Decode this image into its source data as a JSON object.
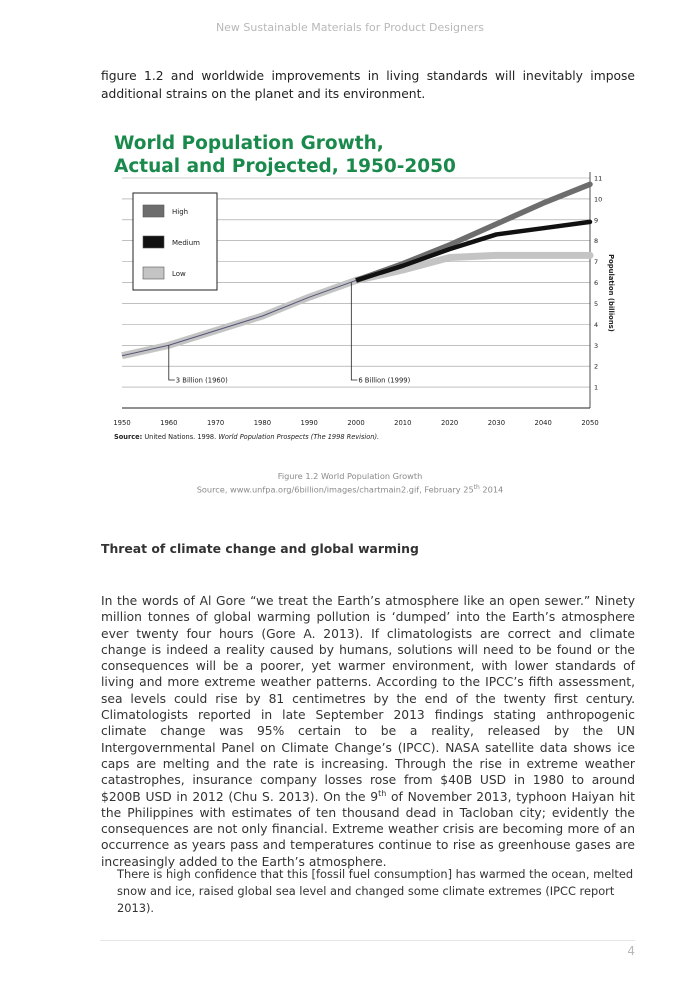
{
  "header": {
    "running_head": "New Sustainable Materials for Product Designers"
  },
  "intro_text": "figure 1.2 and worldwide improvements in living standards will inevitably impose additional strains on the planet and its environment.",
  "figure": {
    "title_line1": "World Population Growth,",
    "title_line2": "Actual and Projected, 1950-2050",
    "source_label": "Source:",
    "source_text": " United Nations. 1998. ",
    "source_italic": "World Population Prospects (The 1998 Revision).",
    "caption_line1": "Figure 1.2 World Population Growth",
    "caption_line2": "Source, www.unfpa.org/6billion/images/chartmain2.gif, February 25",
    "caption_sup": "th",
    "caption_year": " 2014"
  },
  "chart_data": {
    "type": "line",
    "title": "World Population Growth, Actual and Projected, 1950-2050",
    "xlabel": "",
    "ylabel": "Population (billions)",
    "xlim": [
      1950,
      2050
    ],
    "ylim": [
      0,
      11
    ],
    "x_ticks": [
      1950,
      1960,
      1970,
      1980,
      1990,
      2000,
      2010,
      2020,
      2030,
      2040,
      2050
    ],
    "y_ticks": [
      1,
      2,
      3,
      4,
      5,
      6,
      7,
      8,
      9,
      10,
      11
    ],
    "y_axis_side": "right",
    "grid": "horizontal",
    "legend_position": "top-left",
    "legend": [
      "High",
      "Medium",
      "Low"
    ],
    "colors": {
      "High": "#6d6d6d",
      "Medium": "#111111",
      "Low": "#c4c4c4",
      "Actual": "#555577"
    },
    "series": [
      {
        "name": "High",
        "x": [
          2000,
          2010,
          2020,
          2030,
          2040,
          2050
        ],
        "values": [
          6.1,
          6.9,
          7.8,
          8.8,
          9.8,
          10.7
        ]
      },
      {
        "name": "Medium",
        "x": [
          2000,
          2010,
          2020,
          2030,
          2040,
          2050
        ],
        "values": [
          6.1,
          6.8,
          7.6,
          8.3,
          8.6,
          8.9
        ]
      },
      {
        "name": "Low",
        "x": [
          2000,
          2010,
          2020,
          2030,
          2040,
          2050
        ],
        "values": [
          6.1,
          6.6,
          7.2,
          7.3,
          7.3,
          7.3
        ]
      },
      {
        "x": [
          1950,
          1960,
          1970,
          1980,
          1990,
          2000
        ],
        "values": [
          2.5,
          3.0,
          3.7,
          4.4,
          5.3,
          6.1
        ]
      }
    ],
    "annotations": [
      {
        "text": "3 Billion (1960)",
        "x": 1960,
        "y": 3.0
      },
      {
        "text": "6 Billion (1999)",
        "x": 1999,
        "y": 6.0
      }
    ]
  },
  "section": {
    "heading": "Threat of climate change and global warming"
  },
  "body": {
    "para_part1": "In the words of Al Gore “we treat the Earth’s atmosphere like an open sewer.”  Ninety million tonnes of global warming pollution is ‘dumped’ into the Earth’s atmosphere ever twenty four hours (Gore A. 2013).  If climatologists are correct and climate change is indeed a reality caused by humans, solutions will need to be found or the consequences will be a poorer, yet warmer environment, with lower standards of living and more extreme weather patterns.  According to the IPCC’s fifth assessment, sea levels could rise by 81 centimetres by the end of the twenty first century.  Climatologists reported in late September 2013 findings stating anthropogenic climate change was 95% certain to be a reality, released by the UN Intergovernmental Panel on Climate Change’s (IPCC).  NASA satellite data shows ice caps are melting and the rate is increasing.  Through the rise in extreme weather catastrophes, insurance company losses rose from $40B USD in 1980 to around $200B USD in 2012 (Chu S. 2013).  On the 9",
    "para_sup": "th",
    "para_part2": " of November 2013, typhoon Haiyan hit the Philippines with estimates of ten thousand dead in Tacloban city; evidently the consequences are not only financial.  Extreme weather crisis are becoming more of an occurrence as years pass and temperatures continue to rise as greenhouse gases are increasingly added to the Earth’s atmosphere.",
    "quote": "There is high confidence that this [fossil fuel consumption] has warmed the ocean, melted snow and ice, raised global sea level and changed some climate extremes (IPCC report 2013)."
  },
  "footer": {
    "page_number": "4"
  }
}
